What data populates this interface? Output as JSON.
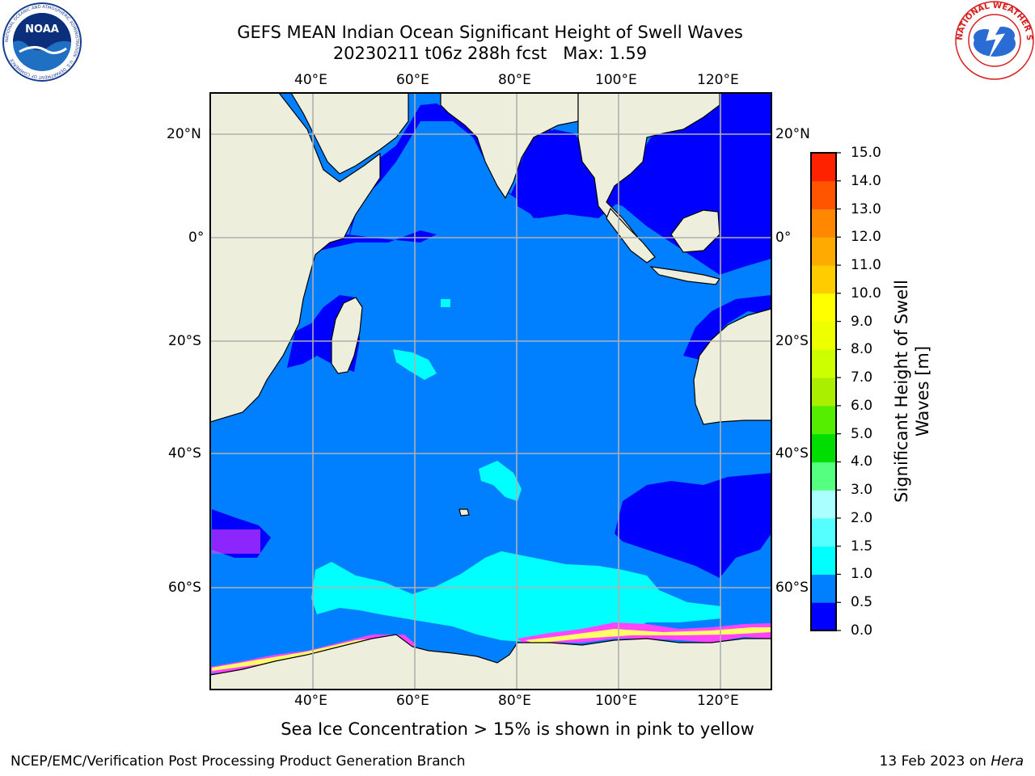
{
  "header": {
    "title_line1": "GEFS MEAN Indian Ocean Significant Height of Swell Waves",
    "title_line2": "20230211 t06z 288h fcst   Max: 1.59"
  },
  "logos": {
    "left": {
      "text": "NOAA",
      "ring_text": "NATIONAL OCEANIC AND ATMOSPHERIC ADMINISTRATION · U.S. DEPARTMENT OF COMMERCE"
    },
    "right": {
      "ring_text": "NATIONAL WEATHER SERVICE"
    }
  },
  "map": {
    "lon_labels": [
      "40°E",
      "60°E",
      "80°E",
      "100°E",
      "120°E"
    ],
    "lat_labels_left": [
      "20°N",
      "0°",
      "20°S",
      "40°S",
      "60°S"
    ],
    "lat_labels_right": [
      "20°N",
      "0°",
      "20°S",
      "40°S",
      "60°S"
    ],
    "colors": {
      "land": "#eeeedd",
      "ocean_0_05": "#0000ff",
      "ocean_05_1": "#007fff",
      "ocean_1_15": "#00ffff",
      "ocean_15_2": "#55ffff",
      "ice": [
        "#ff44ff",
        "#ffaa66",
        "#ffff66"
      ]
    }
  },
  "colorbar": {
    "label": "Significant Height of Swell Waves [m]",
    "ticks": [
      "0.0",
      "0.5",
      "1.0",
      "1.5",
      "2.0",
      "3.0",
      "4.0",
      "5.0",
      "6.0",
      "7.0",
      "8.0",
      "9.0",
      "10.0",
      "11.0",
      "12.0",
      "13.0",
      "14.0",
      "15.0"
    ],
    "colors": [
      "#0000ff",
      "#007fff",
      "#00ffff",
      "#55ffff",
      "#aaffff",
      "#55ff7f",
      "#00dd00",
      "#55ee00",
      "#aaee00",
      "#ccff00",
      "#eeff00",
      "#ffff00",
      "#ffcc00",
      "#ffaa00",
      "#ff8800",
      "#ff5500",
      "#ff2200"
    ]
  },
  "footer": {
    "note": "Sea Ice Concentration > 15% is shown in pink to yellow",
    "credit": "NCEP/EMC/Verification Post Processing Product Generation Branch",
    "date": "13 Feb 2023 on",
    "machine": "Hera"
  }
}
